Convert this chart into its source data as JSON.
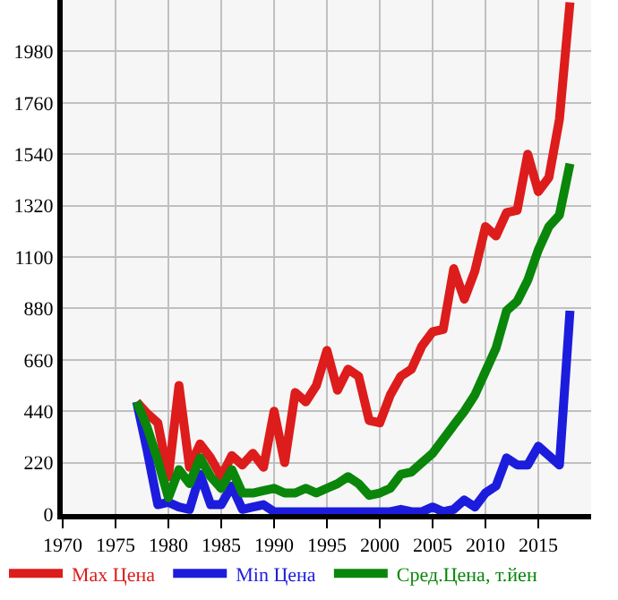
{
  "chart_data": {
    "type": "line",
    "x": [
      1977,
      1978,
      1979,
      1980,
      1981,
      1982,
      1983,
      1984,
      1985,
      1986,
      1987,
      1988,
      1989,
      1990,
      1991,
      1992,
      1993,
      1994,
      1995,
      1996,
      1997,
      1998,
      1999,
      2000,
      2001,
      2002,
      2003,
      2004,
      2005,
      2006,
      2007,
      2008,
      2009,
      2010,
      2011,
      2012,
      2013,
      2014,
      2015,
      2016,
      2017,
      2018
    ],
    "series": [
      {
        "name": "Max Цена",
        "color": "#dd1c1c",
        "values": [
          480,
          430,
          390,
          160,
          550,
          200,
          300,
          240,
          160,
          250,
          210,
          260,
          200,
          440,
          220,
          520,
          480,
          550,
          700,
          530,
          620,
          590,
          400,
          390,
          510,
          590,
          620,
          720,
          780,
          790,
          1050,
          920,
          1040,
          1230,
          1190,
          1290,
          1300,
          1540,
          1380,
          1440,
          1690,
          2190
        ]
      },
      {
        "name": "Min Цена",
        "color": "#1c1cdd",
        "values": [
          480,
          270,
          40,
          50,
          30,
          20,
          170,
          40,
          40,
          120,
          20,
          30,
          40,
          10,
          10,
          10,
          10,
          10,
          10,
          10,
          10,
          10,
          10,
          10,
          10,
          20,
          10,
          10,
          30,
          10,
          20,
          60,
          30,
          90,
          120,
          240,
          210,
          210,
          290,
          250,
          210,
          870
        ]
      },
      {
        "name": "Сред.Цена, т.йен",
        "color": "#0a860a",
        "values": [
          480,
          370,
          230,
          70,
          190,
          130,
          240,
          160,
          110,
          190,
          90,
          90,
          100,
          110,
          90,
          90,
          110,
          90,
          110,
          130,
          160,
          130,
          80,
          90,
          110,
          170,
          180,
          220,
          260,
          320,
          380,
          440,
          510,
          610,
          710,
          870,
          910,
          1000,
          1130,
          1230,
          1280,
          1500
        ]
      }
    ],
    "xlim": [
      1970,
      2020
    ],
    "xticks": [
      1970,
      1975,
      1980,
      1985,
      1990,
      1995,
      2000,
      2005,
      2010,
      2015
    ],
    "ylim": [
      0,
      2200
    ],
    "yticks": [
      0,
      220,
      440,
      660,
      880,
      1100,
      1320,
      1540,
      1760,
      1980,
      {
        "value": 2200,
        "label": null
      }
    ],
    "grid": true,
    "legend": "bottom",
    "marker": "none",
    "line_style": "solid"
  }
}
